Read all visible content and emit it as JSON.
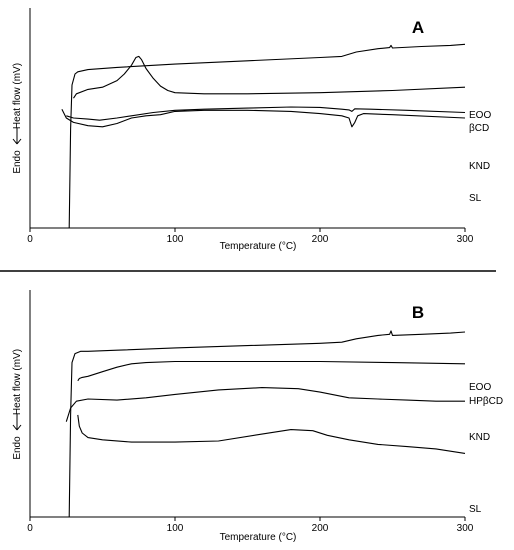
{
  "chart_data": [
    {
      "type": "line",
      "panel_label": "A",
      "xlabel": "Temperature (°C)",
      "ylabel": "Heat flow (mV)",
      "ylabel_prefix": "Endo",
      "xlim": [
        0,
        300
      ],
      "xticks": [
        0,
        100,
        200,
        300
      ],
      "yticks_shown": false,
      "grid": false,
      "series": [
        {
          "name": "EOO",
          "points": [
            [
              27,
              1.0
            ],
            [
              28,
              0.55
            ],
            [
              29,
              0.35
            ],
            [
              31,
              0.3
            ],
            [
              33,
              0.29
            ],
            [
              40,
              0.28
            ],
            [
              60,
              0.27
            ],
            [
              100,
              0.255
            ],
            [
              150,
              0.24
            ],
            [
              200,
              0.225
            ],
            [
              215,
              0.22
            ],
            [
              225,
              0.2
            ],
            [
              240,
              0.185
            ],
            [
              248,
              0.18
            ],
            [
              249,
              0.17
            ],
            [
              250,
              0.182
            ],
            [
              270,
              0.175
            ],
            [
              290,
              0.17
            ],
            [
              300,
              0.165
            ]
          ]
        },
        {
          "name": "βCD",
          "points": [
            [
              30,
              0.41
            ],
            [
              32,
              0.39
            ],
            [
              40,
              0.37
            ],
            [
              50,
              0.36
            ],
            [
              60,
              0.33
            ],
            [
              65,
              0.3
            ],
            [
              70,
              0.26
            ],
            [
              73,
              0.225
            ],
            [
              75,
              0.22
            ],
            [
              77,
              0.235
            ],
            [
              80,
              0.275
            ],
            [
              85,
              0.32
            ],
            [
              90,
              0.355
            ],
            [
              95,
              0.375
            ],
            [
              100,
              0.385
            ],
            [
              120,
              0.39
            ],
            [
              150,
              0.39
            ],
            [
              200,
              0.385
            ],
            [
              250,
              0.375
            ],
            [
              300,
              0.36
            ]
          ]
        },
        {
          "name": "KND",
          "points": [
            [
              25,
              0.49
            ],
            [
              30,
              0.5
            ],
            [
              40,
              0.505
            ],
            [
              48,
              0.51
            ],
            [
              60,
              0.5
            ],
            [
              70,
              0.49
            ],
            [
              85,
              0.475
            ],
            [
              100,
              0.465
            ],
            [
              120,
              0.46
            ],
            [
              150,
              0.455
            ],
            [
              180,
              0.45
            ],
            [
              200,
              0.452
            ],
            [
              215,
              0.46
            ],
            [
              220,
              0.463
            ],
            [
              222,
              0.47
            ],
            [
              224,
              0.458
            ],
            [
              235,
              0.46
            ],
            [
              260,
              0.465
            ],
            [
              300,
              0.475
            ]
          ]
        },
        {
          "name": "SL",
          "points": [
            [
              22,
              0.46
            ],
            [
              25,
              0.5
            ],
            [
              30,
              0.52
            ],
            [
              40,
              0.535
            ],
            [
              50,
              0.54
            ],
            [
              60,
              0.525
            ],
            [
              70,
              0.5
            ],
            [
              80,
              0.49
            ],
            [
              90,
              0.485
            ],
            [
              100,
              0.47
            ],
            [
              120,
              0.465
            ],
            [
              150,
              0.465
            ],
            [
              180,
              0.47
            ],
            [
              200,
              0.48
            ],
            [
              215,
              0.49
            ],
            [
              220,
              0.5
            ],
            [
              222,
              0.54
            ],
            [
              224,
              0.52
            ],
            [
              226,
              0.49
            ],
            [
              230,
              0.48
            ],
            [
              250,
              0.485
            ],
            [
              300,
              0.5
            ]
          ]
        }
      ]
    },
    {
      "type": "line",
      "panel_label": "B",
      "xlabel": "Temperature (°C)",
      "ylabel": "Heat flow (mV)",
      "ylabel_prefix": "Endo",
      "xlim": [
        0,
        300
      ],
      "xticks": [
        0,
        100,
        200,
        300
      ],
      "yticks_shown": false,
      "grid": false,
      "series": [
        {
          "name": "EOO",
          "points": [
            [
              27,
              1.0
            ],
            [
              28,
              0.55
            ],
            [
              29,
              0.32
            ],
            [
              31,
              0.28
            ],
            [
              35,
              0.27
            ],
            [
              40,
              0.27
            ],
            [
              60,
              0.265
            ],
            [
              100,
              0.255
            ],
            [
              150,
              0.245
            ],
            [
              200,
              0.235
            ],
            [
              215,
              0.23
            ],
            [
              225,
              0.215
            ],
            [
              240,
              0.2
            ],
            [
              248,
              0.195
            ],
            [
              249,
              0.18
            ],
            [
              250,
              0.2
            ],
            [
              270,
              0.195
            ],
            [
              290,
              0.19
            ],
            [
              300,
              0.185
            ]
          ]
        },
        {
          "name": "HPβCD",
          "points": [
            [
              33,
              0.4
            ],
            [
              34,
              0.39
            ],
            [
              36,
              0.385
            ],
            [
              40,
              0.38
            ],
            [
              50,
              0.36
            ],
            [
              60,
              0.34
            ],
            [
              70,
              0.325
            ],
            [
              80,
              0.32
            ],
            [
              100,
              0.315
            ],
            [
              150,
              0.315
            ],
            [
              200,
              0.315
            ],
            [
              250,
              0.32
            ],
            [
              300,
              0.325
            ]
          ]
        },
        {
          "name": "KND",
          "points": [
            [
              25,
              0.58
            ],
            [
              28,
              0.52
            ],
            [
              32,
              0.49
            ],
            [
              40,
              0.48
            ],
            [
              60,
              0.485
            ],
            [
              80,
              0.475
            ],
            [
              100,
              0.46
            ],
            [
              130,
              0.44
            ],
            [
              160,
              0.43
            ],
            [
              185,
              0.435
            ],
            [
              200,
              0.45
            ],
            [
              220,
              0.475
            ],
            [
              240,
              0.48
            ],
            [
              260,
              0.485
            ],
            [
              280,
              0.49
            ],
            [
              300,
              0.49
            ]
          ]
        },
        {
          "name": "SL",
          "points": [
            [
              33,
              0.55
            ],
            [
              34,
              0.6
            ],
            [
              36,
              0.63
            ],
            [
              40,
              0.65
            ],
            [
              50,
              0.66
            ],
            [
              70,
              0.67
            ],
            [
              100,
              0.67
            ],
            [
              130,
              0.665
            ],
            [
              160,
              0.635
            ],
            [
              180,
              0.615
            ],
            [
              195,
              0.62
            ],
            [
              205,
              0.64
            ],
            [
              220,
              0.66
            ],
            [
              240,
              0.68
            ],
            [
              260,
              0.69
            ],
            [
              280,
              0.7
            ],
            [
              300,
              0.72
            ]
          ]
        }
      ]
    }
  ]
}
